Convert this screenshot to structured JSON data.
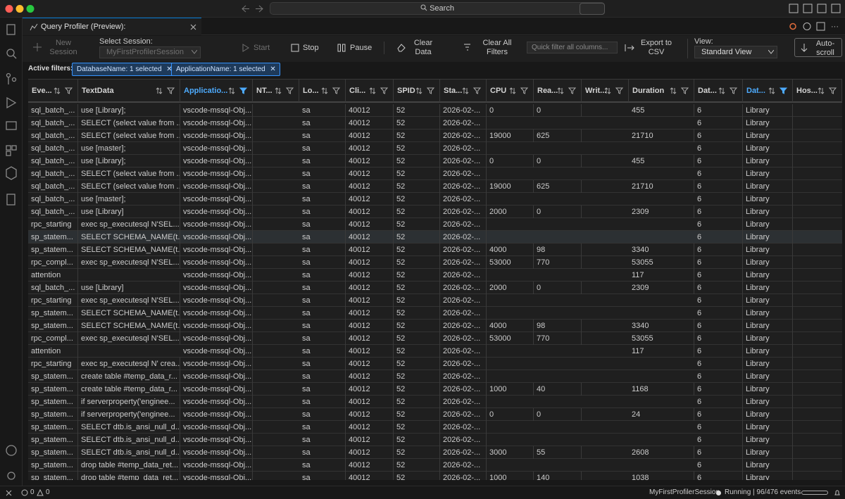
{
  "window": {
    "search": "Search"
  },
  "tab": {
    "title": "Query Profiler (Preview): MyFirstProfilerSession"
  },
  "toolbar": {
    "new_session": "New Session",
    "select_session_label": "Select Session:",
    "session": "MyFirstProfilerSession",
    "start": "Start",
    "stop": "Stop",
    "pause": "Pause",
    "clear_data": "Clear Data",
    "clear_filters": "Clear All Filters",
    "quick_filter_placeholder": "Quick filter all columns...",
    "export": "Export to CSV",
    "view_label": "View:",
    "view": "Standard View",
    "autoscroll": "Auto-scroll"
  },
  "filters": {
    "label": "Active filters:",
    "chips": [
      "DatabaseName: 1 selected",
      "ApplicationName: 1 selected"
    ]
  },
  "table": {
    "selected_row": 10,
    "columns": [
      {
        "label": "Eve...",
        "filtered": false
      },
      {
        "label": "TextData",
        "filtered": false
      },
      {
        "label": "Applicatio...",
        "filtered": true
      },
      {
        "label": "NT...",
        "filtered": false
      },
      {
        "label": "Lo...",
        "filtered": false
      },
      {
        "label": "Cli...",
        "filtered": false
      },
      {
        "label": "SPID",
        "filtered": false
      },
      {
        "label": "Sta...",
        "filtered": false
      },
      {
        "label": "CPU",
        "filtered": false
      },
      {
        "label": "Rea...",
        "filtered": false
      },
      {
        "label": "Writ...",
        "filtered": false
      },
      {
        "label": "Duration",
        "filtered": false
      },
      {
        "label": "Dat...",
        "filtered": false
      },
      {
        "label": "Dat...",
        "filtered": true
      },
      {
        "label": "Hos...",
        "filtered": false
      }
    ],
    "rows": [
      [
        "sql_batch_...",
        "use [Library];",
        "vscode-mssql-Obj...",
        null,
        "sa",
        40012,
        52,
        "2026-02-...",
        0,
        0,
        null,
        455,
        6,
        "Library",
        null
      ],
      [
        "sql_batch_...",
        "SELECT (select value from ...",
        "vscode-mssql-Obj...",
        null,
        "sa",
        40012,
        52,
        "2026-02-...",
        null,
        null,
        null,
        null,
        6,
        "Library",
        null
      ],
      [
        "sql_batch_...",
        "SELECT (select value from ...",
        "vscode-mssql-Obj...",
        null,
        "sa",
        40012,
        52,
        "2026-02-...",
        19000,
        625,
        null,
        21710,
        6,
        "Library",
        null
      ],
      [
        "sql_batch_...",
        "use [master];",
        "vscode-mssql-Obj...",
        null,
        "sa",
        40012,
        52,
        "2026-02-...",
        null,
        null,
        null,
        null,
        6,
        "Library",
        null
      ],
      [
        "sql_batch_...",
        "use [Library];",
        "vscode-mssql-Obj...",
        null,
        "sa",
        40012,
        52,
        "2026-02-...",
        0,
        0,
        null,
        455,
        6,
        "Library",
        null
      ],
      [
        "sql_batch_...",
        "SELECT (select value from ...",
        "vscode-mssql-Obj...",
        null,
        "sa",
        40012,
        52,
        "2026-02-...",
        null,
        null,
        null,
        null,
        6,
        "Library",
        null
      ],
      [
        "sql_batch_...",
        "SELECT (select value from ...",
        "vscode-mssql-Obj...",
        null,
        "sa",
        40012,
        52,
        "2026-02-...",
        19000,
        625,
        null,
        21710,
        6,
        "Library",
        null
      ],
      [
        "sql_batch_...",
        "use [master];",
        "vscode-mssql-Obj...",
        null,
        "sa",
        40012,
        52,
        "2026-02-...",
        null,
        null,
        null,
        null,
        6,
        "Library",
        null
      ],
      [
        "sql_batch_...",
        "use [Library]",
        "vscode-mssql-Obj...",
        null,
        "sa",
        40012,
        52,
        "2026-02-...",
        2000,
        0,
        null,
        2309,
        6,
        "Library",
        null
      ],
      [
        "rpc_starting",
        "exec sp_executesql N'SEL...",
        "vscode-mssql-Obj...",
        null,
        "sa",
        40012,
        52,
        "2026-02-...",
        null,
        null,
        null,
        null,
        6,
        "Library",
        null
      ],
      [
        "sp_statem...",
        "SELECT SCHEMA_NAME(t...",
        "vscode-mssql-Obj...",
        null,
        "sa",
        40012,
        52,
        "2026-02-...",
        null,
        null,
        null,
        null,
        6,
        "Library",
        null
      ],
      [
        "sp_statem...",
        "SELECT SCHEMA_NAME(t...",
        "vscode-mssql-Obj...",
        null,
        "sa",
        40012,
        52,
        "2026-02-...",
        4000,
        98,
        null,
        3340,
        6,
        "Library",
        null
      ],
      [
        "rpc_compl...",
        "exec sp_executesql N'SEL...",
        "vscode-mssql-Obj...",
        null,
        "sa",
        40012,
        52,
        "2026-02-...",
        53000,
        770,
        null,
        53055,
        6,
        "Library",
        null
      ],
      [
        "attention",
        null,
        "vscode-mssql-Obj...",
        null,
        "sa",
        40012,
        52,
        "2026-02-...",
        null,
        null,
        null,
        117,
        6,
        "Library",
        null
      ],
      [
        "sql_batch_...",
        "use [Library]",
        "vscode-mssql-Obj...",
        null,
        "sa",
        40012,
        52,
        "2026-02-...",
        2000,
        0,
        null,
        2309,
        6,
        "Library",
        null
      ],
      [
        "rpc_starting",
        "exec sp_executesql N'SEL...",
        "vscode-mssql-Obj...",
        null,
        "sa",
        40012,
        52,
        "2026-02-...",
        null,
        null,
        null,
        null,
        6,
        "Library",
        null
      ],
      [
        "sp_statem...",
        "SELECT SCHEMA_NAME(t...",
        "vscode-mssql-Obj...",
        null,
        "sa",
        40012,
        52,
        "2026-02-...",
        null,
        null,
        null,
        null,
        6,
        "Library",
        null
      ],
      [
        "sp_statem...",
        "SELECT SCHEMA_NAME(t...",
        "vscode-mssql-Obj...",
        null,
        "sa",
        40012,
        52,
        "2026-02-...",
        4000,
        98,
        null,
        3340,
        6,
        "Library",
        null
      ],
      [
        "rpc_compl...",
        "exec sp_executesql N'SEL...",
        "vscode-mssql-Obj...",
        null,
        "sa",
        40012,
        52,
        "2026-02-...",
        53000,
        770,
        null,
        53055,
        6,
        "Library",
        null
      ],
      [
        "attention",
        null,
        "vscode-mssql-Obj...",
        null,
        "sa",
        40012,
        52,
        "2026-02-...",
        null,
        null,
        null,
        117,
        6,
        "Library",
        null
      ],
      [
        "rpc_starting",
        "exec sp_executesql N' crea...",
        "vscode-mssql-Obj...",
        null,
        "sa",
        40012,
        52,
        "2026-02-...",
        null,
        null,
        null,
        null,
        6,
        "Library",
        null
      ],
      [
        "sp_statem...",
        "create table #temp_data_r...",
        "vscode-mssql-Obj...",
        null,
        "sa",
        40012,
        52,
        "2026-02-...",
        null,
        null,
        null,
        null,
        6,
        "Library",
        null
      ],
      [
        "sp_statem...",
        "create table #temp_data_r...",
        "vscode-mssql-Obj...",
        null,
        "sa",
        40012,
        52,
        "2026-02-...",
        1000,
        40,
        null,
        1168,
        6,
        "Library",
        null
      ],
      [
        "sp_statem...",
        "if serverproperty('enginee...",
        "vscode-mssql-Obj...",
        null,
        "sa",
        40012,
        52,
        "2026-02-...",
        null,
        null,
        null,
        null,
        6,
        "Library",
        null
      ],
      [
        "sp_statem...",
        "if serverproperty('enginee...",
        "vscode-mssql-Obj...",
        null,
        "sa",
        40012,
        52,
        "2026-02-...",
        0,
        0,
        null,
        24,
        6,
        "Library",
        null
      ],
      [
        "sp_statem...",
        "SELECT dtb.is_ansi_null_d...",
        "vscode-mssql-Obj...",
        null,
        "sa",
        40012,
        52,
        "2026-02-...",
        null,
        null,
        null,
        null,
        6,
        "Library",
        null
      ],
      [
        "sp_statem...",
        "SELECT dtb.is_ansi_null_d...",
        "vscode-mssql-Obj...",
        null,
        "sa",
        40012,
        52,
        "2026-02-...",
        null,
        null,
        null,
        null,
        6,
        "Library",
        null
      ],
      [
        "sp_statem...",
        "SELECT dtb.is_ansi_null_d...",
        "vscode-mssql-Obj...",
        null,
        "sa",
        40012,
        52,
        "2026-02-...",
        3000,
        55,
        null,
        2608,
        6,
        "Library",
        null
      ],
      [
        "sp_statem...",
        "drop table #temp_data_ret...",
        "vscode-mssql-Obj...",
        null,
        "sa",
        40012,
        52,
        "2026-02-...",
        null,
        null,
        null,
        null,
        6,
        "Library",
        null
      ],
      [
        "sp_statem...",
        "drop table #temp_data_ret...",
        "vscode-mssql-Obj...",
        null,
        "sa",
        40012,
        52,
        "2026-02-...",
        1000,
        140,
        null,
        1038,
        6,
        "Library",
        null
      ]
    ]
  },
  "status": {
    "errors": 0,
    "warnings": 0,
    "session": "MyFirstProfilerSession",
    "state": "Running | 96/476 events"
  }
}
